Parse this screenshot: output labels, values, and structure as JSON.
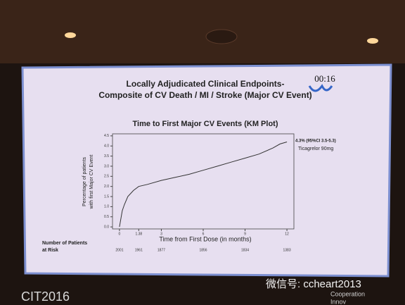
{
  "chart_data": {
    "type": "line",
    "slide_title": [
      "Locally Adjudicated Clinical Endpoints-",
      "Composite of CV Death / MI / Stroke (Major CV Event)"
    ],
    "timer": "00:16",
    "title": "Time to First Major CV Events (KM Plot)",
    "y_label": [
      "Percentage of patients",
      "with first Major CV Event"
    ],
    "x_label": "Time from First Dose (in months)",
    "x": [
      0,
      0.1,
      0.2,
      0.35,
      0.6,
      1.0,
      1.38,
      2,
      3,
      4,
      5,
      6,
      7,
      8,
      9,
      10,
      11,
      11.5,
      12
    ],
    "series": [
      {
        "color": "#333333",
        "values": [
          0,
          0.4,
          0.8,
          1.1,
          1.5,
          1.8,
          2.0,
          2.1,
          2.3,
          2.45,
          2.6,
          2.8,
          3.0,
          3.2,
          3.4,
          3.6,
          3.9,
          4.1,
          4.2
        ]
      }
    ],
    "xlim": [
      -0.5,
      12.5
    ],
    "ylim": [
      -0.1,
      4.6
    ],
    "xticks": [
      0,
      1.38,
      3,
      6,
      9,
      12
    ],
    "yticks": [
      {
        "value": 0,
        "label": "0.0"
      },
      0.5,
      {
        "value": 1,
        "label": "1.0"
      },
      1.5,
      {
        "value": 2,
        "label": "2.0"
      },
      2.5,
      {
        "value": 3,
        "label": "3.0"
      },
      3.5,
      {
        "value": 4,
        "label": "4.0"
      },
      4.5
    ],
    "annotations": [
      "4.3% (95%CI 3.5-5.3)",
      "Ticagrelor 90mg"
    ],
    "risk_label": [
      "Number of Patients",
      "at Risk"
    ],
    "at_risk": [
      2001,
      1961,
      1877,
      1856,
      1834,
      1383
    ],
    "footer_left": "CIT2016",
    "watermark": "微信号: ccheart2013",
    "footer_right": [
      "Cooperation",
      "Innov"
    ]
  }
}
